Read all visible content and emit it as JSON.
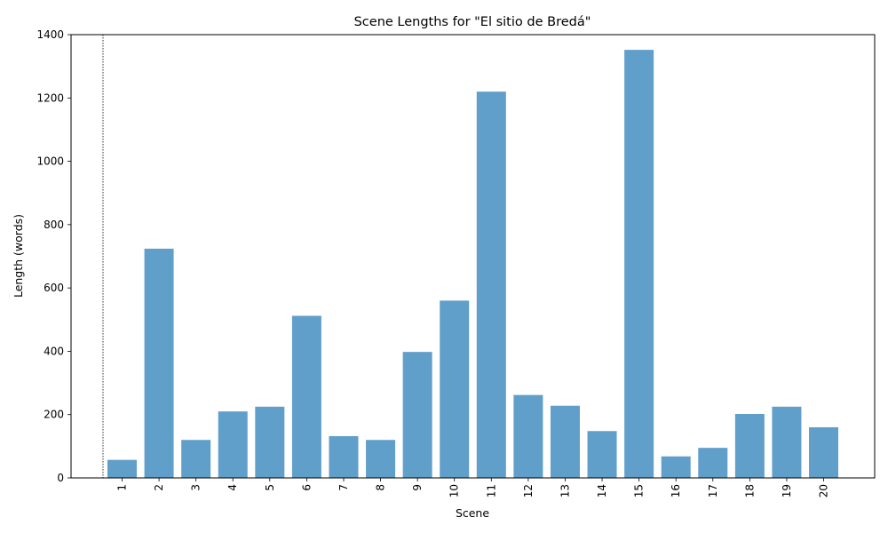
{
  "chart_data": {
    "type": "bar",
    "title": "Scene Lengths for \"El sitio de Bredá\"",
    "xlabel": "Scene",
    "ylabel": "Length (words)",
    "categories": [
      "1",
      "2",
      "3",
      "4",
      "5",
      "6",
      "7",
      "8",
      "9",
      "10",
      "11",
      "12",
      "13",
      "14",
      "15",
      "16",
      "17",
      "18",
      "19",
      "20"
    ],
    "values": [
      57,
      724,
      120,
      210,
      225,
      512,
      132,
      120,
      398,
      560,
      1220,
      262,
      228,
      148,
      1352,
      68,
      95,
      202,
      225,
      160
    ],
    "ylim": [
      0,
      1400
    ],
    "yticks": [
      0,
      200,
      400,
      600,
      800,
      1000,
      1200,
      1400
    ],
    "bar_color": "#619fcb",
    "grid": false,
    "legend": "none",
    "reference_line": {
      "style": "dotted",
      "color": "#000000"
    }
  }
}
